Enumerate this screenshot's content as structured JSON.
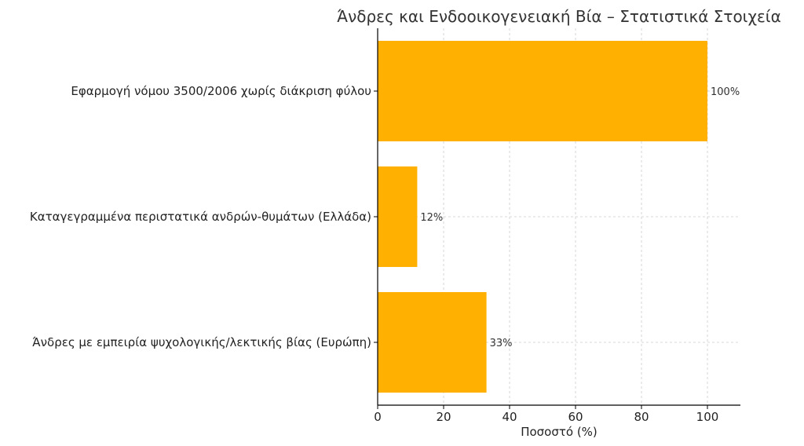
{
  "chart_data": {
    "type": "bar",
    "orientation": "horizontal",
    "title": "Άνδρες και Ενδοοικογενειακή Βία – Στατιστικά Στοιχεία",
    "xlabel": "Ποσοστό (%)",
    "ylabel": "",
    "xlim": [
      0,
      110
    ],
    "xticks": [
      0,
      20,
      40,
      60,
      80,
      100
    ],
    "grid": true,
    "bar_color": "#FFB000",
    "categories": [
      "Εφαρμογή νόμου 3500/2006 χωρίς διάκριση φύλου",
      "Καταγεγραμμένα περιστατικά ανδρών-θυμάτων (Ελλάδα)",
      "Άνδρες με εμπειρία ψυχολογικής/λεκτικής βίας (Ευρώπη)"
    ],
    "values": [
      100,
      12,
      33
    ],
    "data_labels": [
      "100%",
      "12%",
      "33%"
    ]
  }
}
